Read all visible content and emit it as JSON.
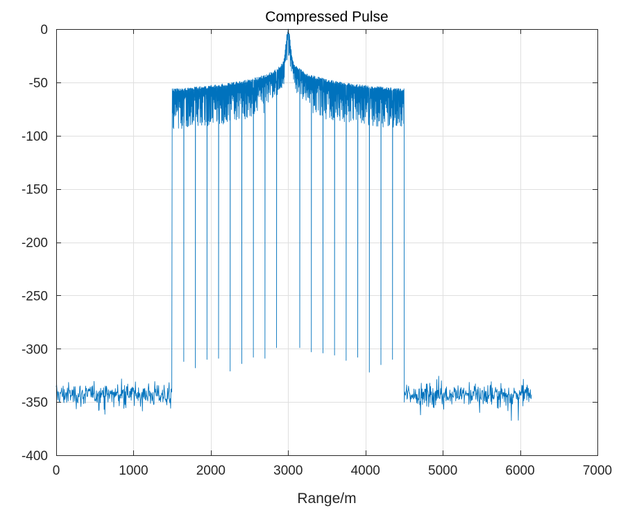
{
  "chart_data": {
    "type": "line",
    "title": "Compressed Pulse",
    "xlabel": "Range/m",
    "ylabel": "",
    "xlim": [
      0,
      7000
    ],
    "ylim": [
      -400,
      0
    ],
    "x_ticks": [
      0,
      1000,
      2000,
      3000,
      4000,
      5000,
      6000,
      7000
    ],
    "x_tick_labels": [
      "0",
      "1000",
      "2000",
      "3000",
      "4000",
      "5000",
      "6000",
      "7000"
    ],
    "y_ticks": [
      0,
      -50,
      -100,
      -150,
      -200,
      -250,
      -300,
      -350,
      -400
    ],
    "y_tick_labels": [
      "0",
      "-50",
      "-100",
      "-150",
      "-200",
      "-250",
      "-300",
      "-350",
      "-400"
    ],
    "grid": true,
    "box": true,
    "line_color": "#0072BD",
    "series": [
      {
        "x_range": [
          0,
          6150
        ],
        "peak": {
          "x": 3000,
          "y": 0
        },
        "noise_floor": {
          "regions": [
            [
              0,
              1500
            ],
            [
              4500,
              6150
            ]
          ],
          "mean": -343,
          "min": -371,
          "max": -324
        },
        "sidelobe_envelope": {
          "x_range": [
            1500,
            4500
          ],
          "edge_level": -56,
          "near_peak_level": -25
        },
        "null_points": [
          {
            "x": 1650,
            "y": -312
          },
          {
            "x": 1800,
            "y": -318
          },
          {
            "x": 1950,
            "y": -310
          },
          {
            "x": 2100,
            "y": -309
          },
          {
            "x": 2250,
            "y": -321
          },
          {
            "x": 2400,
            "y": -314
          },
          {
            "x": 2550,
            "y": -308
          },
          {
            "x": 2700,
            "y": -309
          },
          {
            "x": 2850,
            "y": -299
          },
          {
            "x": 3150,
            "y": -299
          },
          {
            "x": 3300,
            "y": -303
          },
          {
            "x": 3450,
            "y": -304
          },
          {
            "x": 3600,
            "y": -306
          },
          {
            "x": 3750,
            "y": -311
          },
          {
            "x": 3900,
            "y": -308
          },
          {
            "x": 4050,
            "y": -322
          },
          {
            "x": 4200,
            "y": -315
          },
          {
            "x": 4350,
            "y": -310
          }
        ]
      }
    ]
  }
}
